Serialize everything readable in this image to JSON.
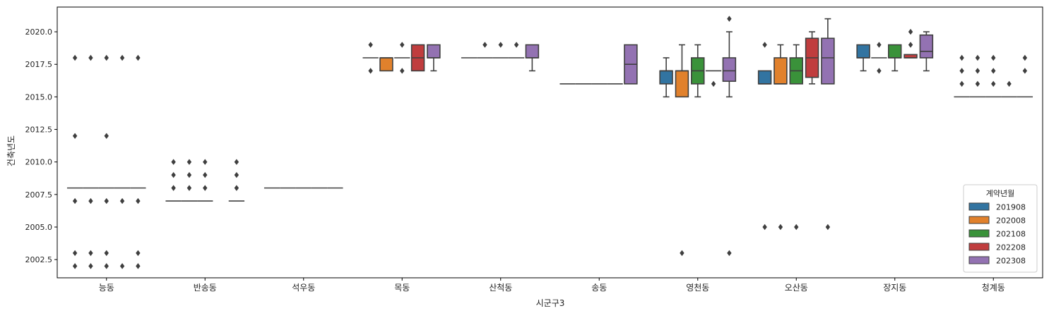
{
  "chart_data": {
    "type": "boxplot",
    "xlabel": "시군구3",
    "ylabel": "건축년도",
    "ylim": [
      2001.1,
      2021.9
    ],
    "yticks": [
      2002.5,
      2005.0,
      2007.5,
      2010.0,
      2012.5,
      2015.0,
      2017.5,
      2020.0
    ],
    "ytick_labels": [
      "2002.5",
      "2005.0",
      "2007.5",
      "2010.0",
      "2012.5",
      "2015.0",
      "2017.5",
      "2020.0"
    ],
    "categories": [
      "능동",
      "반송동",
      "석우동",
      "목동",
      "산척동",
      "송동",
      "영천동",
      "오산동",
      "장지동",
      "청계동"
    ],
    "legend": {
      "title": "계약년월",
      "placement": "lower-right",
      "entries": [
        "201908",
        "202008",
        "202108",
        "202208",
        "202308"
      ],
      "colors": [
        "#3274a1",
        "#e1812c",
        "#3a923a",
        "#c03d3e",
        "#9372b2"
      ]
    },
    "colors": {
      "median_line": "#3f3f3f",
      "outlier": "#3f3f3f"
    },
    "groups": [
      {
        "category": "능동",
        "boxes": [
          {
            "hue": 0,
            "q1": 2008,
            "median": 2008,
            "q3": 2008,
            "whislo": 2008,
            "whishi": 2008,
            "fliers": [
              2018,
              2012,
              2007,
              2003,
              2002
            ]
          },
          {
            "hue": 1,
            "q1": 2008,
            "median": 2008,
            "q3": 2008,
            "whislo": 2008,
            "whishi": 2008,
            "fliers": [
              2018,
              2007,
              2003,
              2002
            ]
          },
          {
            "hue": 2,
            "q1": 2008,
            "median": 2008,
            "q3": 2008,
            "whislo": 2008,
            "whishi": 2008,
            "fliers": [
              2018,
              2012,
              2007,
              2003,
              2002
            ]
          },
          {
            "hue": 3,
            "q1": 2008,
            "median": 2008,
            "q3": 2008,
            "whislo": 2008,
            "whishi": 2008,
            "fliers": [
              2018,
              2007,
              2002
            ]
          },
          {
            "hue": 4,
            "q1": 2008,
            "median": 2008,
            "q3": 2008,
            "whislo": 2008,
            "whishi": 2008,
            "fliers": [
              2018,
              2007,
              2003,
              2002
            ]
          }
        ]
      },
      {
        "category": "반송동",
        "boxes": [
          {
            "hue": 0,
            "q1": 2007,
            "median": 2007,
            "q3": 2007,
            "whislo": 2007,
            "whishi": 2007,
            "fliers": [
              2010,
              2009,
              2008
            ]
          },
          {
            "hue": 1,
            "q1": 2007,
            "median": 2007,
            "q3": 2007,
            "whislo": 2007,
            "whishi": 2007,
            "fliers": [
              2010,
              2009,
              2008
            ]
          },
          {
            "hue": 2,
            "q1": 2007,
            "median": 2007,
            "q3": 2007,
            "whislo": 2007,
            "whishi": 2007,
            "fliers": [
              2010,
              2009,
              2008
            ]
          },
          {
            "hue": 4,
            "q1": 2007,
            "median": 2007,
            "q3": 2007,
            "whislo": 2007,
            "whishi": 2007,
            "fliers": [
              2010,
              2009,
              2008
            ]
          }
        ]
      },
      {
        "category": "석우동",
        "boxes": [
          {
            "hue": 0,
            "q1": 2008,
            "median": 2008,
            "q3": 2008,
            "whislo": 2008,
            "whishi": 2008,
            "fliers": []
          },
          {
            "hue": 1,
            "q1": 2008,
            "median": 2008,
            "q3": 2008,
            "whislo": 2008,
            "whishi": 2008,
            "fliers": []
          },
          {
            "hue": 2,
            "q1": 2008,
            "median": 2008,
            "q3": 2008,
            "whislo": 2008,
            "whishi": 2008,
            "fliers": []
          },
          {
            "hue": 3,
            "q1": 2008,
            "median": 2008,
            "q3": 2008,
            "whislo": 2008,
            "whishi": 2008,
            "fliers": []
          },
          {
            "hue": 4,
            "q1": 2008,
            "median": 2008,
            "q3": 2008,
            "whislo": 2008,
            "whishi": 2008,
            "fliers": []
          }
        ]
      },
      {
        "category": "목동",
        "boxes": [
          {
            "hue": 0,
            "q1": 2018,
            "median": 2018,
            "q3": 2018,
            "whislo": 2018,
            "whishi": 2018,
            "fliers": [
              2019,
              2017
            ]
          },
          {
            "hue": 1,
            "q1": 2017,
            "median": 2018,
            "q3": 2018,
            "whislo": 2017,
            "whishi": 2018,
            "fliers": []
          },
          {
            "hue": 2,
            "q1": 2018,
            "median": 2018,
            "q3": 2018,
            "whislo": 2018,
            "whishi": 2018,
            "fliers": [
              2019,
              2017
            ]
          },
          {
            "hue": 3,
            "q1": 2017,
            "median": 2018,
            "q3": 2019,
            "whislo": 2017,
            "whishi": 2019,
            "fliers": []
          },
          {
            "hue": 4,
            "q1": 2018,
            "median": 2018,
            "q3": 2019,
            "whislo": 2017,
            "whishi": 2019,
            "fliers": []
          }
        ]
      },
      {
        "category": "산척동",
        "boxes": [
          {
            "hue": 0,
            "q1": 2018,
            "median": 2018,
            "q3": 2018,
            "whislo": 2018,
            "whishi": 2018,
            "fliers": []
          },
          {
            "hue": 1,
            "q1": 2018,
            "median": 2018,
            "q3": 2018,
            "whislo": 2018,
            "whishi": 2018,
            "fliers": [
              2019
            ]
          },
          {
            "hue": 2,
            "q1": 2018,
            "median": 2018,
            "q3": 2018,
            "whislo": 2018,
            "whishi": 2018,
            "fliers": [
              2019
            ]
          },
          {
            "hue": 3,
            "q1": 2018,
            "median": 2018,
            "q3": 2018,
            "whislo": 2018,
            "whishi": 2018,
            "fliers": [
              2019
            ]
          },
          {
            "hue": 4,
            "q1": 2018,
            "median": 2018,
            "q3": 2019,
            "whislo": 2017,
            "whishi": 2019,
            "fliers": []
          }
        ]
      },
      {
        "category": "송동",
        "boxes": [
          {
            "hue": 0,
            "q1": 2016,
            "median": 2016,
            "q3": 2016,
            "whislo": 2016,
            "whishi": 2016,
            "fliers": []
          },
          {
            "hue": 1,
            "q1": 2016,
            "median": 2016,
            "q3": 2016,
            "whislo": 2016,
            "whishi": 2016,
            "fliers": []
          },
          {
            "hue": 2,
            "q1": 2016,
            "median": 2016,
            "q3": 2016,
            "whislo": 2016,
            "whishi": 2016,
            "fliers": []
          },
          {
            "hue": 3,
            "q1": 2016,
            "median": 2016,
            "q3": 2016,
            "whislo": 2016,
            "whishi": 2016,
            "fliers": []
          },
          {
            "hue": 4,
            "q1": 2016,
            "median": 2017.5,
            "q3": 2019,
            "whislo": 2016,
            "whishi": 2019,
            "fliers": []
          }
        ]
      },
      {
        "category": "영천동",
        "boxes": [
          {
            "hue": 0,
            "q1": 2016,
            "median": 2017,
            "q3": 2017,
            "whislo": 2015,
            "whishi": 2018,
            "fliers": []
          },
          {
            "hue": 1,
            "q1": 2015,
            "median": 2017,
            "q3": 2017,
            "whislo": 2015,
            "whishi": 2019,
            "fliers": [
              2003
            ]
          },
          {
            "hue": 2,
            "q1": 2016,
            "median": 2017,
            "q3": 2018,
            "whislo": 2015,
            "whishi": 2019,
            "fliers": []
          },
          {
            "hue": 3,
            "q1": 2017,
            "median": 2017,
            "q3": 2017,
            "whislo": 2017,
            "whishi": 2017,
            "fliers": [
              2016
            ]
          },
          {
            "hue": 4,
            "q1": 2016.2,
            "median": 2017,
            "q3": 2018,
            "whislo": 2015,
            "whishi": 2020,
            "fliers": [
              2021,
              2003
            ]
          }
        ]
      },
      {
        "category": "오산동",
        "boxes": [
          {
            "hue": 0,
            "q1": 2016,
            "median": 2016,
            "q3": 2017,
            "whislo": 2016,
            "whishi": 2017,
            "fliers": [
              2019,
              2005
            ]
          },
          {
            "hue": 1,
            "q1": 2016,
            "median": 2016,
            "q3": 2018,
            "whislo": 2016,
            "whishi": 2019,
            "fliers": [
              2005
            ]
          },
          {
            "hue": 2,
            "q1": 2016,
            "median": 2017,
            "q3": 2018,
            "whislo": 2016,
            "whishi": 2019,
            "fliers": [
              2005
            ]
          },
          {
            "hue": 3,
            "q1": 2016.5,
            "median": 2018,
            "q3": 2019.5,
            "whislo": 2016,
            "whishi": 2020,
            "fliers": []
          },
          {
            "hue": 4,
            "q1": 2016,
            "median": 2018,
            "q3": 2019.5,
            "whislo": 2016,
            "whishi": 2021,
            "fliers": [
              2005
            ]
          }
        ]
      },
      {
        "category": "장지동",
        "boxes": [
          {
            "hue": 0,
            "q1": 2018,
            "median": 2018,
            "q3": 2019,
            "whislo": 2017,
            "whishi": 2019,
            "fliers": []
          },
          {
            "hue": 1,
            "q1": 2018,
            "median": 2018,
            "q3": 2018,
            "whislo": 2018,
            "whishi": 2018,
            "fliers": [
              2019,
              2017
            ]
          },
          {
            "hue": 2,
            "q1": 2018,
            "median": 2018,
            "q3": 2019,
            "whislo": 2017,
            "whishi": 2019,
            "fliers": []
          },
          {
            "hue": 3,
            "q1": 2018,
            "median": 2018,
            "q3": 2018.25,
            "whislo": 2018,
            "whishi": 2018.25,
            "fliers": [
              2020,
              2019
            ]
          },
          {
            "hue": 4,
            "q1": 2018,
            "median": 2018.5,
            "q3": 2019.75,
            "whislo": 2017,
            "whishi": 2020,
            "fliers": []
          }
        ]
      },
      {
        "category": "청계동",
        "boxes": [
          {
            "hue": 0,
            "q1": 2015,
            "median": 2015,
            "q3": 2015,
            "whislo": 2015,
            "whishi": 2015,
            "fliers": [
              2018,
              2017,
              2016
            ]
          },
          {
            "hue": 1,
            "q1": 2015,
            "median": 2015,
            "q3": 2015,
            "whislo": 2015,
            "whishi": 2015,
            "fliers": [
              2018,
              2017,
              2016
            ]
          },
          {
            "hue": 2,
            "q1": 2015,
            "median": 2015,
            "q3": 2015,
            "whislo": 2015,
            "whishi": 2015,
            "fliers": [
              2018,
              2017,
              2016
            ]
          },
          {
            "hue": 3,
            "q1": 2015,
            "median": 2015,
            "q3": 2015,
            "whislo": 2015,
            "whishi": 2015,
            "fliers": [
              2016
            ]
          },
          {
            "hue": 4,
            "q1": 2015,
            "median": 2015,
            "q3": 2015,
            "whislo": 2015,
            "whishi": 2015,
            "fliers": [
              2018,
              2017
            ]
          }
        ]
      }
    ]
  }
}
